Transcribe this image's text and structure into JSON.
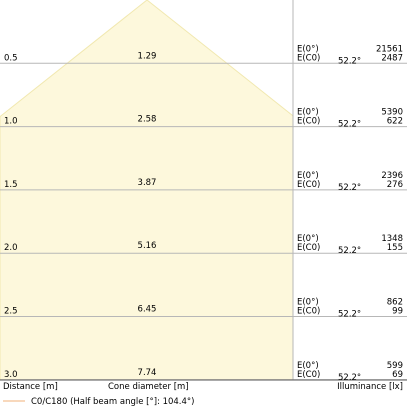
{
  "chart_data": {
    "type": "area",
    "title": "",
    "rows": [
      {
        "distance": "0.5",
        "diameter": "1.29",
        "e0": "21561",
        "ec0": "2487",
        "angle": "52.2°"
      },
      {
        "distance": "1.0",
        "diameter": "2.58",
        "e0": "5390",
        "ec0": "622",
        "angle": "52.2°"
      },
      {
        "distance": "1.5",
        "diameter": "3.87",
        "e0": "2396",
        "ec0": "276",
        "angle": "52.2°"
      },
      {
        "distance": "2.0",
        "diameter": "5.16",
        "e0": "1348",
        "ec0": "155",
        "angle": "52.2°"
      },
      {
        "distance": "2.5",
        "diameter": "6.45",
        "e0": "862",
        "ec0": "99",
        "angle": "52.2°"
      },
      {
        "distance": "3.0",
        "diameter": "7.74",
        "e0": "599",
        "ec0": "69",
        "angle": "52.2°"
      }
    ],
    "e0_label": "E(0°)",
    "ec0_label": "E(C0)",
    "xlabel_left": "Distance [m]",
    "xlabel_mid": "Cone diameter [m]",
    "xlabel_right": "Illuminance [lx]",
    "legend": "C0/C180 (Half beam angle [°]: 104.4°)",
    "half_beam_angle_deg": 104.4,
    "colors": {
      "cone_fill": "#fdf8dc",
      "cone_edge": "#f1e8b0",
      "grid": "#b7b7b7",
      "legend_line": "#f0b27a"
    }
  }
}
